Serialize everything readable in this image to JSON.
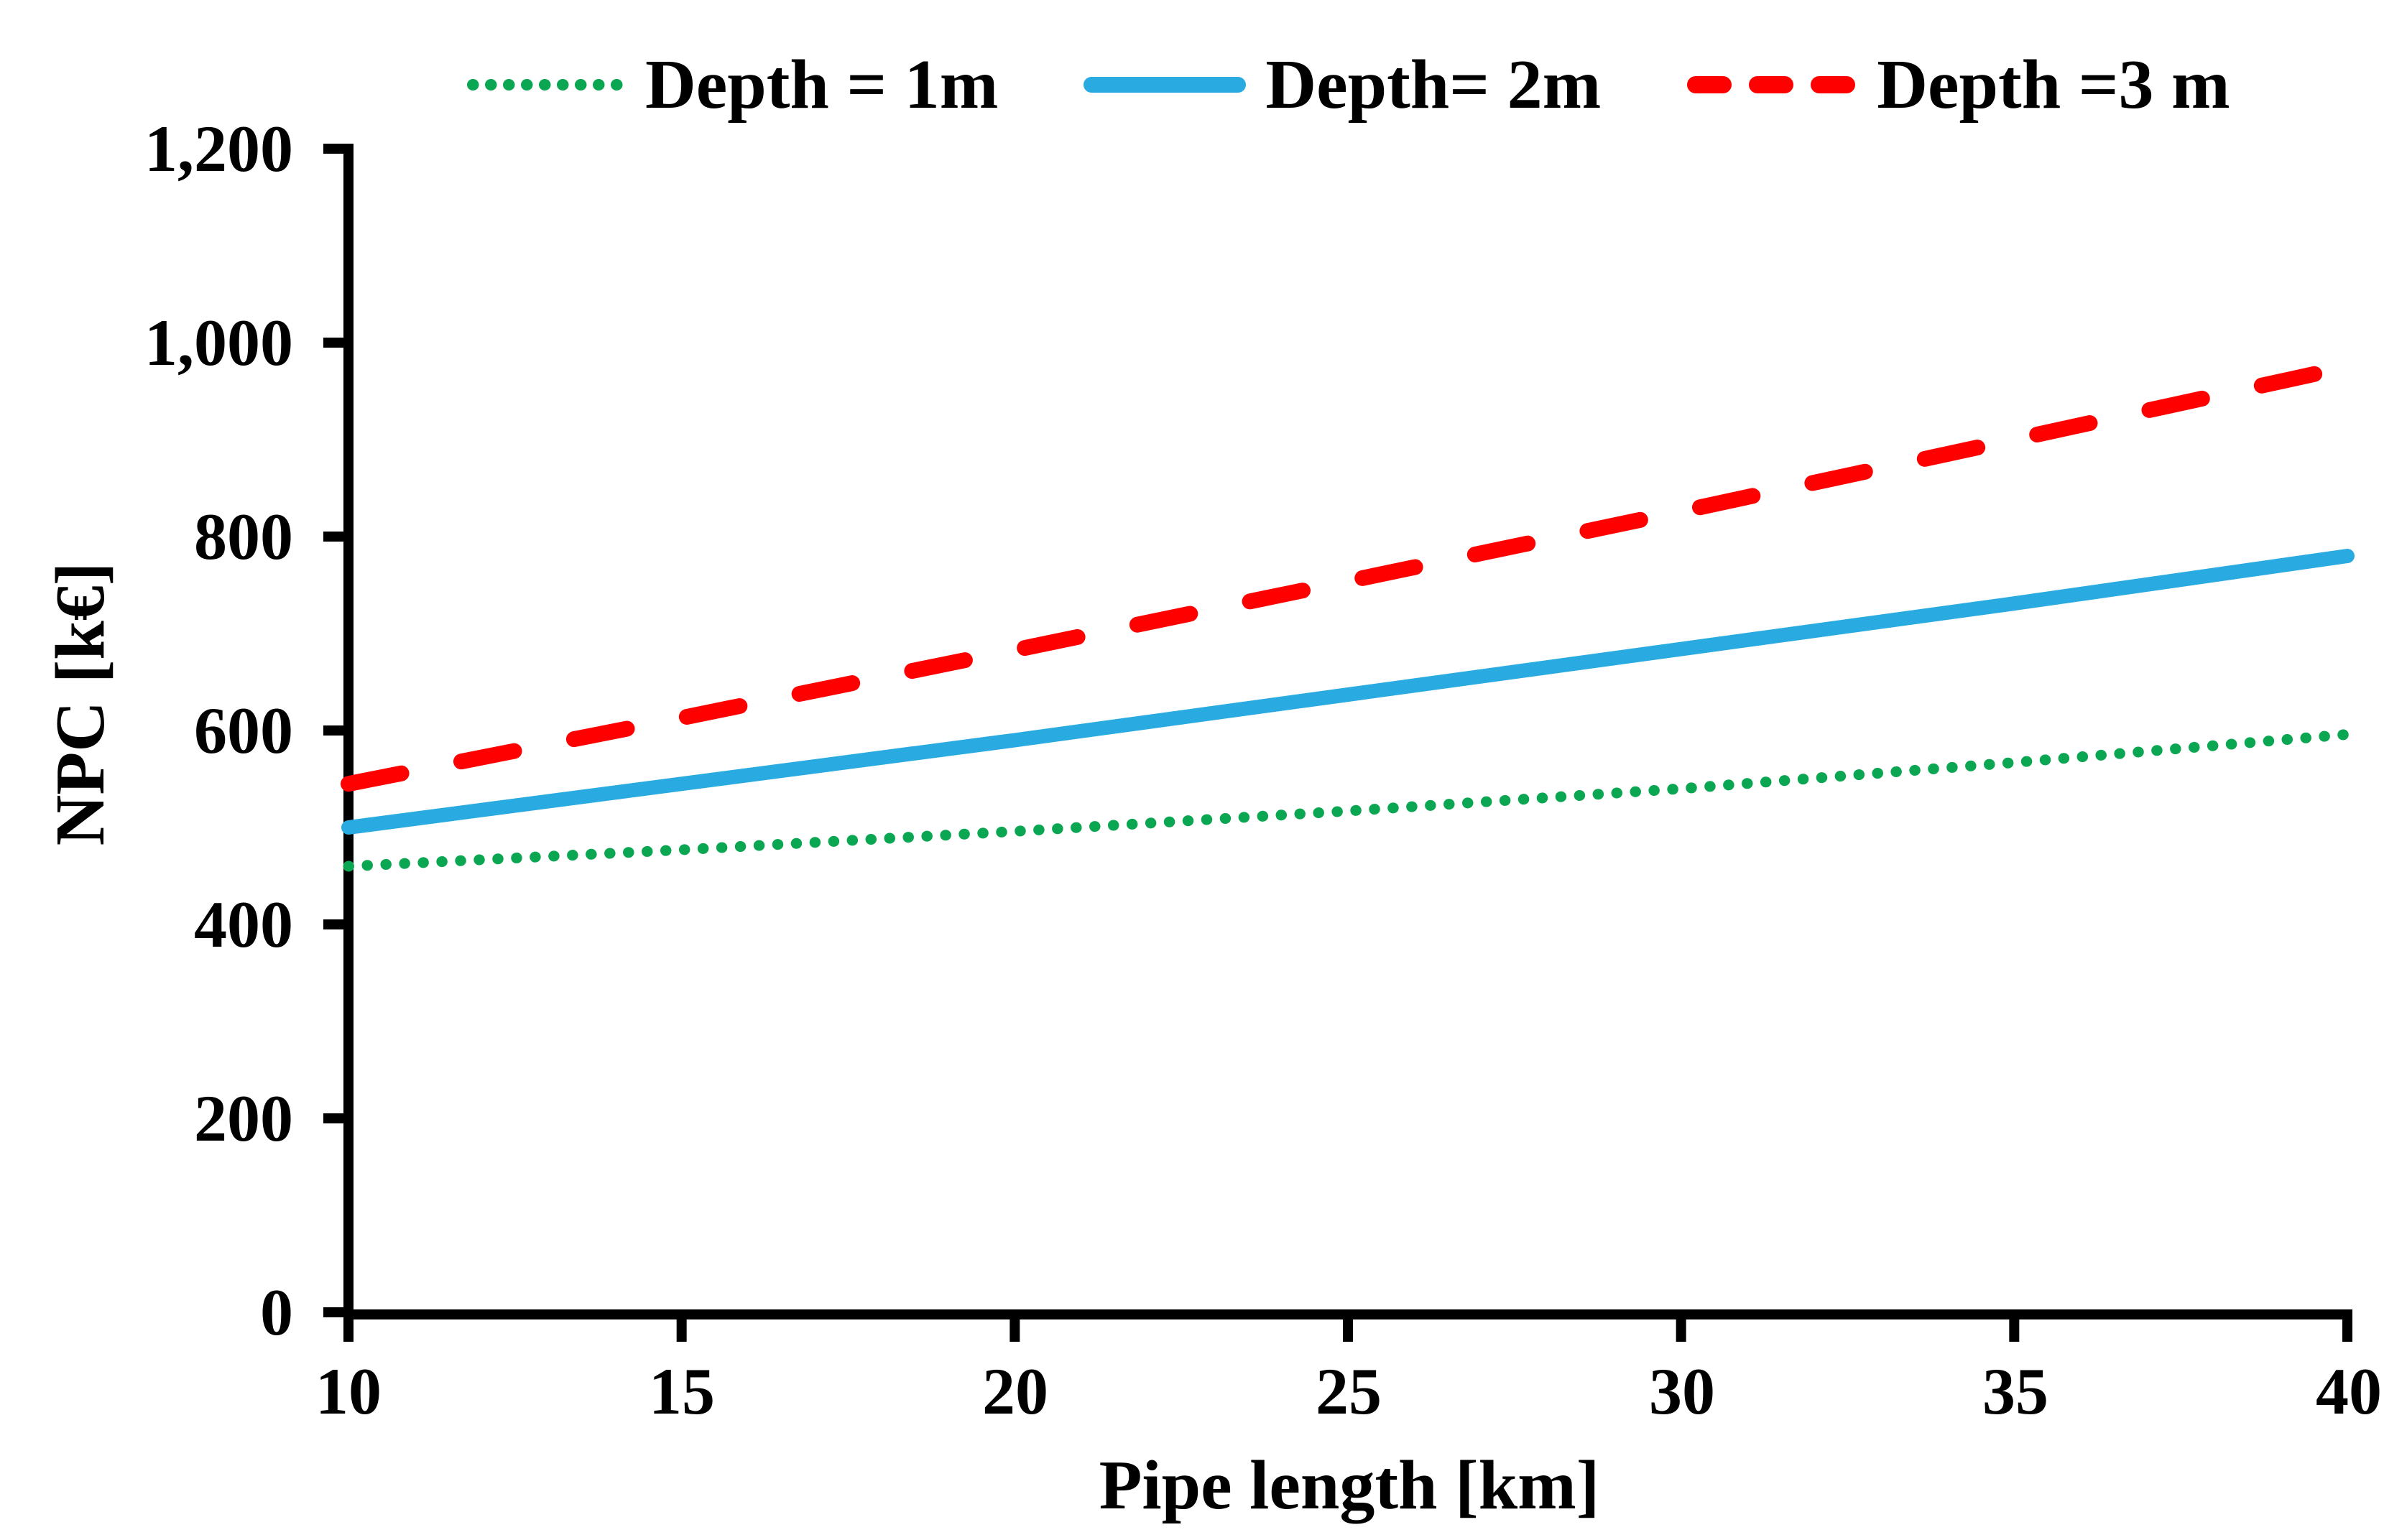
{
  "chart_data": {
    "type": "line",
    "title": "",
    "xlabel": "Pipe length [km]",
    "ylabel": "NPC [k€]",
    "x": [
      10,
      15,
      20,
      25,
      30,
      35,
      40
    ],
    "series": [
      {
        "name": "Depth = 1m",
        "color": "#0BA652",
        "style": "dotted",
        "values": [
          460,
          477,
          496,
          517,
          540,
          567,
          596
        ]
      },
      {
        "name": "Depth= 2m",
        "color": "#29ABE2",
        "style": "solid",
        "values": [
          500,
          545,
          590,
          637,
          684,
          731,
          780
        ]
      },
      {
        "name": "Depth =3 m",
        "color": "#FE0000",
        "style": "dashed",
        "values": [
          545,
          613,
          683,
          754,
          826,
          900,
          975
        ]
      }
    ],
    "xlim": [
      10,
      40
    ],
    "ylim": [
      0,
      1200
    ],
    "xtick_values": [
      10,
      15,
      20,
      25,
      30,
      35,
      40
    ],
    "xtick_labels": [
      "10",
      "15",
      "20",
      "25",
      "30",
      "35",
      "40"
    ],
    "ytick_values": [
      0,
      200,
      400,
      600,
      800,
      1000,
      1200
    ],
    "ytick_labels": [
      "0",
      "200",
      "400",
      "600",
      "800",
      "1,000",
      "1,200"
    ],
    "grid": false,
    "legend_position": "top",
    "axis_color": "#000000",
    "background_color": "#ffffff"
  }
}
